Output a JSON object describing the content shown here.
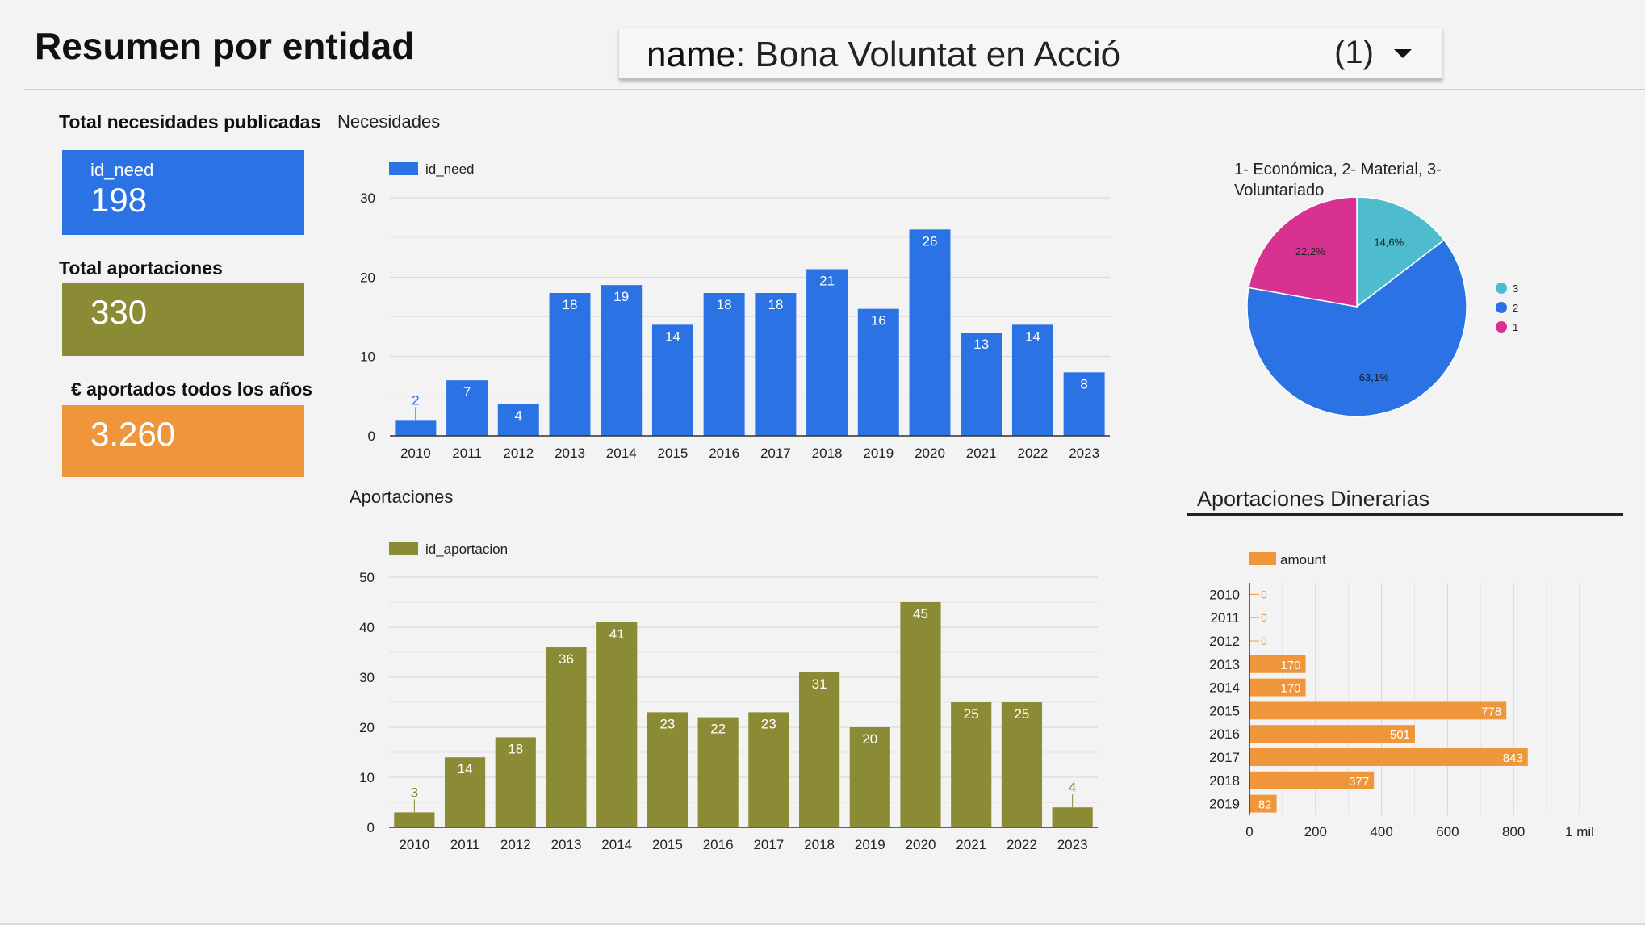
{
  "title": "Resumen por entidad",
  "filter": {
    "field": "name",
    "value": ": Bona Voluntat en Acció",
    "count": "(1)"
  },
  "kpis": {
    "needs_label": "Total necesidades publicadas",
    "needs_sub": "id_need",
    "needs_value": "198",
    "contrib_label": "Total aportaciones",
    "contrib_value": "330",
    "euros_label": "€ aportados todos los años",
    "euros_value": "3.260"
  },
  "colors": {
    "blue": "#2b72e5",
    "olive": "#8c8b35",
    "orange": "#f0963a",
    "teal": "#4fbccd",
    "magenta": "#d93191"
  },
  "chart_data": [
    {
      "type": "bar",
      "title": "Necesidades",
      "categories": [
        "2010",
        "2011",
        "2012",
        "2013",
        "2014",
        "2015",
        "2016",
        "2017",
        "2018",
        "2019",
        "2020",
        "2021",
        "2022",
        "2023"
      ],
      "series": [
        {
          "name": "id_need",
          "values": [
            2,
            7,
            4,
            18,
            19,
            14,
            18,
            18,
            21,
            16,
            26,
            13,
            14,
            8
          ]
        }
      ],
      "ylim": [
        0,
        30
      ],
      "yticks": [
        0,
        10,
        20,
        30
      ],
      "legend": "top-left",
      "grid": true
    },
    {
      "type": "bar",
      "title": "Aportaciones",
      "categories": [
        "2010",
        "2011",
        "2012",
        "2013",
        "2014",
        "2015",
        "2016",
        "2017",
        "2018",
        "2019",
        "2020",
        "2021",
        "2022",
        "2023"
      ],
      "series": [
        {
          "name": "id_aportacion",
          "values": [
            3,
            14,
            18,
            36,
            41,
            23,
            22,
            23,
            31,
            20,
            45,
            25,
            25,
            4
          ]
        }
      ],
      "ylim": [
        0,
        50
      ],
      "yticks": [
        0,
        10,
        20,
        30,
        40,
        50
      ],
      "legend": "top-left",
      "grid": true
    },
    {
      "type": "pie",
      "title": "1- Económica, 2- Material, 3- Voluntariado",
      "slices": [
        {
          "label": "3",
          "value": 14.6,
          "text": "14,6%"
        },
        {
          "label": "2",
          "value": 63.1,
          "text": "63,1%"
        },
        {
          "label": "1",
          "value": 22.2,
          "text": "22,2%"
        }
      ],
      "legend": "right"
    },
    {
      "type": "bar",
      "orientation": "horizontal",
      "title": "Aportaciones Dinerarias",
      "categories": [
        "2010",
        "2011",
        "2012",
        "2013",
        "2014",
        "2015",
        "2016",
        "2017",
        "2018",
        "2019"
      ],
      "series": [
        {
          "name": "amount",
          "values": [
            0,
            0,
            0,
            170,
            170,
            778,
            501,
            843,
            377,
            82
          ]
        }
      ],
      "xlim": [
        0,
        1000
      ],
      "xticks": [
        {
          "v": 0,
          "t": "0"
        },
        {
          "v": 200,
          "t": "200"
        },
        {
          "v": 400,
          "t": "400"
        },
        {
          "v": 600,
          "t": "600"
        },
        {
          "v": 800,
          "t": "800"
        },
        {
          "v": 1000,
          "t": "1 mil"
        }
      ],
      "legend": "top-left",
      "grid": true
    }
  ]
}
